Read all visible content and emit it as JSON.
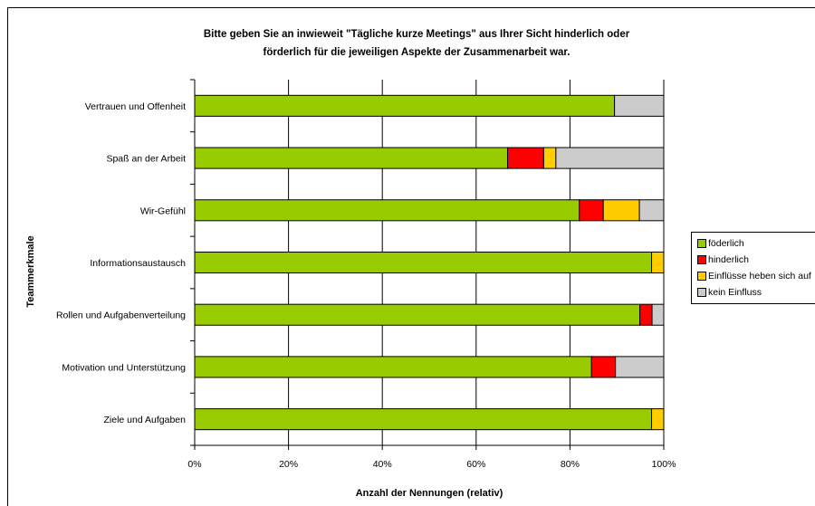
{
  "chart_data": {
    "type": "bar",
    "orientation": "horizontal",
    "stacked": true,
    "title_lines": [
      "Bitte geben Sie an inwieweit \"Tägliche kurze Meetings\" aus Ihrer Sicht hinderlich oder",
      "förderlich für die jeweiligen Aspekte der Zusammenarbeit war."
    ],
    "xlabel": "Anzahl der Nennungen (relativ)",
    "ylabel": "Teammerkmale",
    "xlim": [
      0,
      100
    ],
    "xticks": [
      "0%",
      "20%",
      "40%",
      "60%",
      "80%",
      "100%"
    ],
    "categories": [
      "Vertrauen und Offenheit",
      "Spaß an der Arbeit",
      "Wir-Gefühl",
      "Informationsaustausch",
      "Rollen und Aufgabenverteilung",
      "Motivation und Unterstützung",
      "Ziele und Aufgaben"
    ],
    "series": [
      {
        "name": "föderlich",
        "color": "#99cc00",
        "values": [
          89.5,
          66.7,
          82,
          97.4,
          94.9,
          84.6,
          97.4
        ]
      },
      {
        "name": "hinderlich",
        "color": "#ff0000",
        "values": [
          0,
          7.7,
          5.1,
          0,
          2.6,
          5.1,
          0
        ]
      },
      {
        "name": "Einflüsse heben sich auf",
        "color": "#ffcc00",
        "values": [
          0,
          2.6,
          7.7,
          2.6,
          0,
          0,
          2.6
        ]
      },
      {
        "name": "kein Einfluss",
        "color": "#cccccc",
        "values": [
          10.5,
          23,
          5.2,
          0,
          2.5,
          10.3,
          0
        ]
      }
    ],
    "grid": true,
    "legend": "right"
  }
}
